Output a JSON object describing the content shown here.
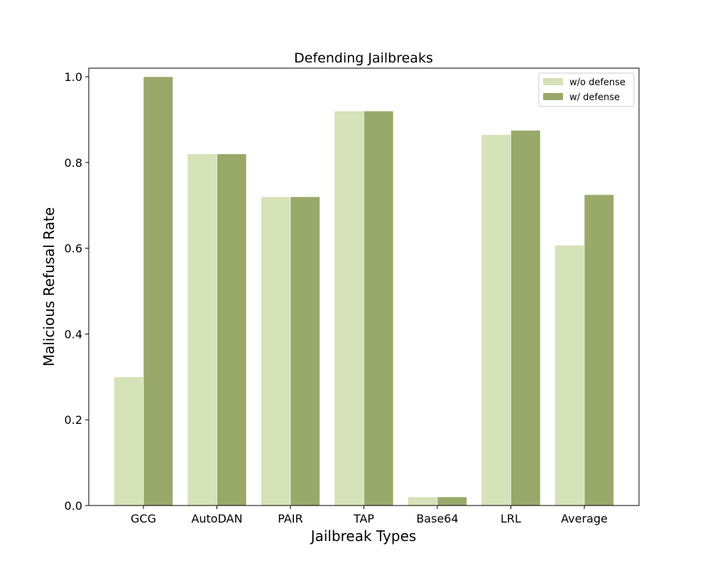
{
  "chart_data": {
    "type": "bar",
    "title": "Defending Jailbreaks",
    "xlabel": "Jailbreak Types",
    "ylabel": "Malicious Refusal Rate",
    "categories": [
      "GCG",
      "AutoDAN",
      "PAIR",
      "TAP",
      "Base64",
      "LRL",
      "Average"
    ],
    "series": [
      {
        "name": "w/o defense",
        "color": "#d6e2b7",
        "values": [
          0.3,
          0.82,
          0.72,
          0.92,
          0.02,
          0.865,
          0.607
        ]
      },
      {
        "name": "w/ defense",
        "color": "#98a96a",
        "values": [
          1.0,
          0.82,
          0.72,
          0.92,
          0.02,
          0.875,
          0.725
        ]
      }
    ],
    "ylim": [
      0,
      1.02
    ],
    "yticks": [
      "0.0",
      "0.2",
      "0.4",
      "0.6",
      "0.8",
      "1.0"
    ],
    "ytick_values": [
      0,
      0.2,
      0.4,
      0.6,
      0.8,
      1.0
    ],
    "grid": false,
    "legend_position": "top-right"
  }
}
